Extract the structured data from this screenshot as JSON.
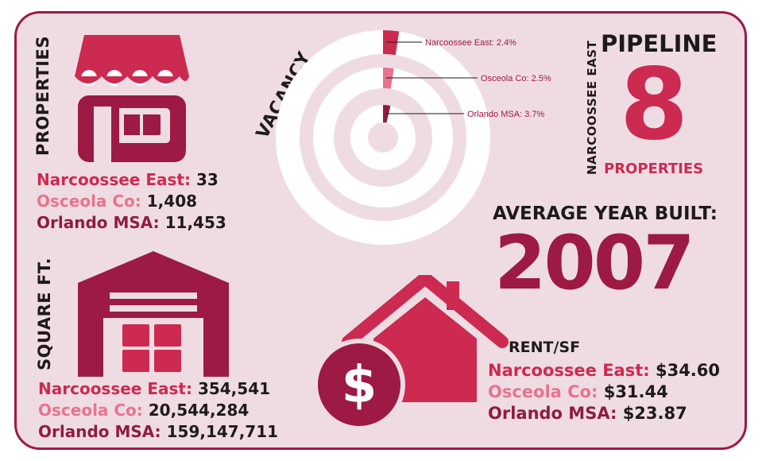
{
  "colors": {
    "primary": "#cc2a50",
    "light": "#e8738e",
    "dark": "#8f1d40",
    "background": "#efdce3",
    "border": "#9c1a44"
  },
  "properties": {
    "heading": "PROPERTIES",
    "icon": "storefront-icon",
    "rows": [
      {
        "label": "Narcoossee East:",
        "value": "33"
      },
      {
        "label": "Osceola Co:",
        "value": "1,408"
      },
      {
        "label": "Orlando MSA:",
        "value": "11,453"
      }
    ]
  },
  "vacancy": {
    "heading": "VACANCY",
    "items": [
      {
        "label": "Narcoossee East: 2.4%",
        "percent": 2.4
      },
      {
        "label": "Osceola Co: 2.5%",
        "percent": 2.5
      },
      {
        "label": "Orlando MSA: 3.7%",
        "percent": 3.7
      }
    ]
  },
  "pipeline": {
    "heading": "PIPELINE",
    "side_label": "NARCOOSSEE EAST",
    "value": "8",
    "unit": "PROPERTIES"
  },
  "square_ft": {
    "heading": "SQUARE FT.",
    "icon": "warehouse-icon",
    "rows": [
      {
        "label": "Narcoossee East:",
        "value": "354,541"
      },
      {
        "label": "Osceola Co:",
        "value": "20,544,284"
      },
      {
        "label": "Orlando MSA:",
        "value": "159,147,711"
      }
    ]
  },
  "year_built": {
    "heading": "AVERAGE YEAR BUILT:",
    "value": "2007"
  },
  "rent": {
    "heading": "RENT/SF",
    "icon": "house-dollar-icon",
    "rows": [
      {
        "label": "Narcoossee East:",
        "value": "$34.60"
      },
      {
        "label": "Osceola Co:",
        "value": "$31.44"
      },
      {
        "label": "Orlando MSA:",
        "value": "$23.87"
      }
    ]
  }
}
